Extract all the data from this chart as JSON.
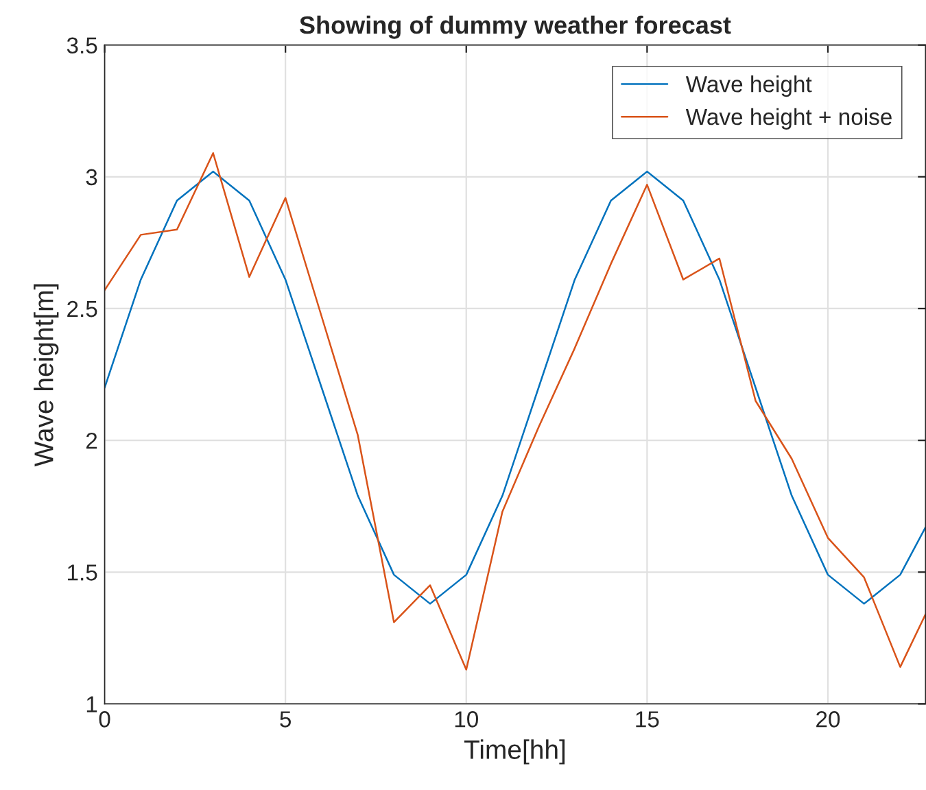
{
  "chart_data": {
    "type": "line",
    "title": "Showing of dummy weather forecast",
    "xlabel": "Time[hh]",
    "ylabel": "Wave height[m]",
    "x": [
      0,
      1,
      2,
      3,
      4,
      5,
      6,
      7,
      8,
      9,
      10,
      11,
      12,
      13,
      14,
      15,
      16,
      17,
      18,
      19,
      20,
      21,
      22,
      22.7
    ],
    "series": [
      {
        "name": "Wave height",
        "color": "#0072bd",
        "values": [
          2.2,
          2.61,
          2.91,
          3.02,
          2.91,
          2.61,
          2.2,
          1.79,
          1.49,
          1.38,
          1.49,
          1.79,
          2.2,
          2.61,
          2.91,
          3.02,
          2.91,
          2.61,
          2.2,
          1.79,
          1.49,
          1.38,
          1.49,
          1.67
        ]
      },
      {
        "name": "Wave height + noise",
        "color": "#d95319",
        "values": [
          2.57,
          2.78,
          2.8,
          3.09,
          2.62,
          2.92,
          2.47,
          2.02,
          1.31,
          1.45,
          1.13,
          1.73,
          2.05,
          2.35,
          2.67,
          2.97,
          2.61,
          2.69,
          2.15,
          1.93,
          1.63,
          1.48,
          1.14,
          1.34
        ]
      }
    ],
    "xlim": [
      0,
      22.7
    ],
    "xticks": [
      0,
      5,
      10,
      15,
      20
    ],
    "ylim": [
      1,
      3.5
    ],
    "yticks": [
      1,
      1.5,
      2,
      2.5,
      3,
      3.5
    ],
    "grid": true,
    "legend": "top right",
    "marker": "none",
    "line_style": "solid"
  }
}
